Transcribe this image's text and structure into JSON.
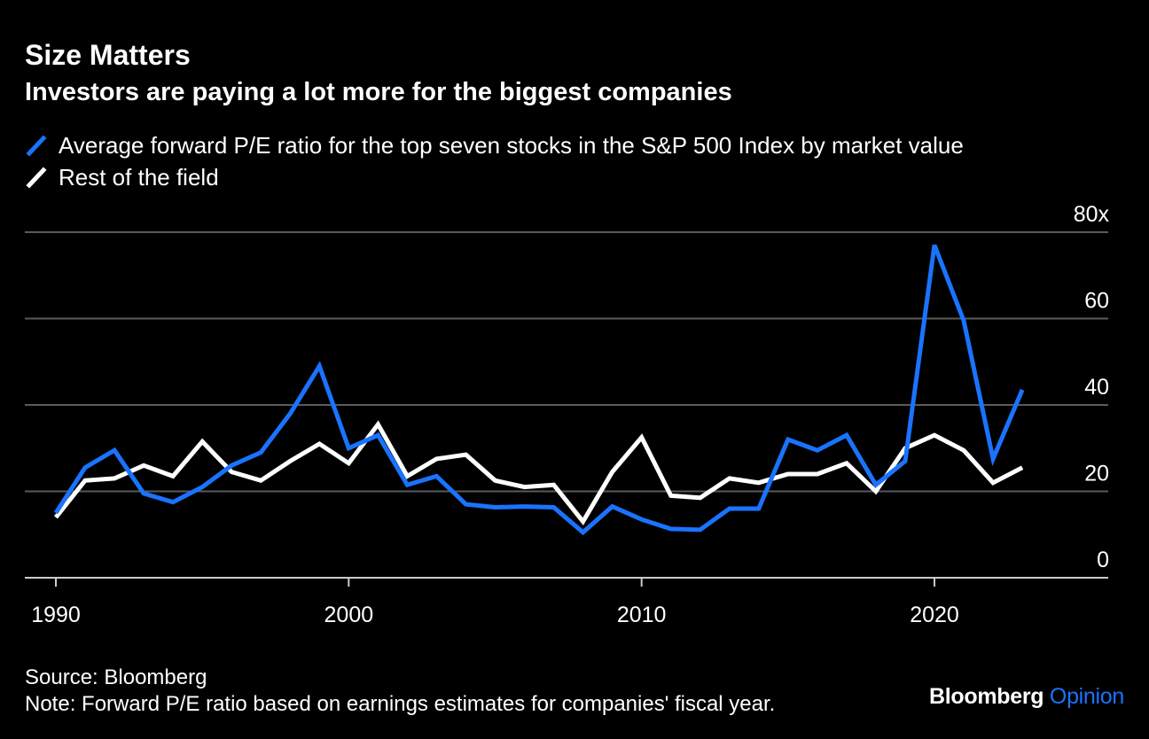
{
  "header": {
    "title": "Size Matters",
    "subtitle": "Investors are paying a lot more for the biggest companies"
  },
  "chart_data": {
    "type": "line",
    "title": "Size Matters",
    "subtitle": "Investors are paying a lot more for the biggest companies",
    "xlabel": "",
    "ylabel": "",
    "x": [
      1990,
      1991,
      1992,
      1993,
      1994,
      1995,
      1996,
      1997,
      1998,
      1999,
      2000,
      2001,
      2002,
      2003,
      2004,
      2005,
      2006,
      2007,
      2008,
      2009,
      2010,
      2011,
      2012,
      2013,
      2014,
      2015,
      2016,
      2017,
      2018,
      2019,
      2020,
      2021,
      2022,
      2023
    ],
    "series": [
      {
        "name": "Average forward P/E ratio for the top seven stocks in the S&P 500 Index by market value",
        "color": "#1a73ff",
        "values": [
          15,
          25.5,
          29.5,
          19.5,
          17.5,
          21,
          26,
          29,
          38,
          49,
          30,
          33,
          21.5,
          23.5,
          17,
          16.3,
          16.5,
          16.3,
          10.5,
          16.5,
          13.5,
          11.3,
          11.1,
          16,
          16,
          32,
          29.5,
          33,
          21.5,
          27,
          77,
          59.5,
          27.5,
          43.5
        ],
        "legend_marker": "slash"
      },
      {
        "name": "Rest of the field",
        "color": "#ffffff",
        "values": [
          14,
          22.5,
          23,
          26,
          23.5,
          31.5,
          24.5,
          22.5,
          27,
          31,
          26.5,
          35.5,
          23.5,
          27.5,
          28.5,
          22.5,
          21,
          21.5,
          13,
          24.5,
          32.5,
          19,
          18.5,
          23,
          22,
          24,
          24,
          26.5,
          20,
          30,
          33,
          29.5,
          22,
          25.5
        ],
        "legend_marker": "slash"
      }
    ],
    "xlim": [
      1989,
      2026
    ],
    "ylim": [
      0,
      80
    ],
    "xticks": [
      1990,
      2000,
      2010,
      2020
    ],
    "yticks": [
      0,
      20,
      40,
      60,
      80
    ],
    "ytick_labels": [
      "0",
      "20",
      "40",
      "60",
      "80x"
    ],
    "grid": true,
    "legend_position": "top-left",
    "y_axis_side": "right"
  },
  "footer": {
    "source": "Source: Bloomberg",
    "note": "Note: Forward P/E ratio based on earnings estimates for companies' fiscal year."
  },
  "brand": {
    "part1": "Bloomberg",
    "part2": "Opinion",
    "color2": "#1a73ff"
  },
  "colors": {
    "background": "#000000",
    "grid": "#5a5a5a",
    "text": "#ffffff",
    "accent": "#1a73ff"
  }
}
